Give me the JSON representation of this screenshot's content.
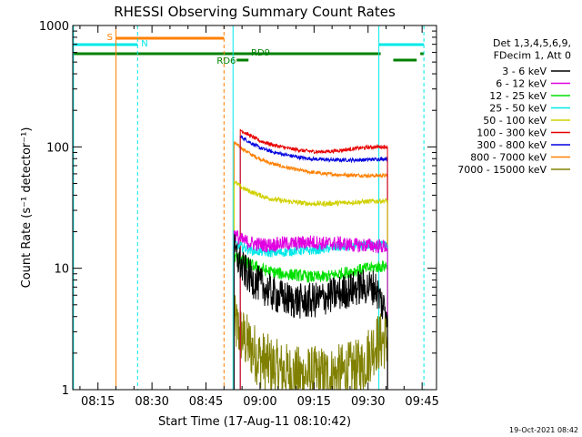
{
  "chart_data": {
    "type": "line",
    "title": "RHESSI Observing Summary Count Rates",
    "xlabel": "Start Time (17-Aug-11 08:10:42)",
    "ylabel": "Count Rate (s⁻¹ detector⁻¹)",
    "yscale": "log",
    "ylim": [
      1,
      1000
    ],
    "xlim_minutes": [
      8.0,
      49.0
    ],
    "x_ticks": [
      {
        "label": "08:15",
        "min": 15
      },
      {
        "label": "08:30",
        "min": 30
      },
      {
        "label": "08:45",
        "min": 45
      },
      {
        "label": "09:00",
        "min": 60
      },
      {
        "label": "09:15",
        "min": 75
      },
      {
        "label": "09:30",
        "min": 90
      },
      {
        "label": "09:45",
        "min": 105
      }
    ],
    "y_ticks": [
      {
        "label": "1",
        "value": 1
      },
      {
        "label": "10",
        "value": 10
      },
      {
        "label": "100",
        "value": 100
      },
      {
        "label": "1000",
        "value": 1000
      }
    ],
    "legend_header": [
      "Det 1,3,4,5,6,9,",
      "FDecim 1, Att 0"
    ],
    "legend_placement": "right",
    "series": [
      {
        "name": "3 - 6 keV",
        "color": "#000000",
        "start": 52.8,
        "end": 95.4,
        "profile": [
          [
            52.8,
            14
          ],
          [
            55,
            10
          ],
          [
            58,
            8
          ],
          [
            61,
            7
          ],
          [
            64,
            6
          ],
          [
            68,
            5.5
          ],
          [
            72,
            5.3
          ],
          [
            76,
            5.5
          ],
          [
            80,
            6
          ],
          [
            84,
            6.5
          ],
          [
            88,
            7
          ],
          [
            92,
            7
          ],
          [
            94,
            5
          ],
          [
            95.4,
            4.5
          ]
        ],
        "noise": 0.15
      },
      {
        "name": "6 - 12 keV",
        "color": "#e000e0",
        "start": 52.8,
        "end": 95.4,
        "profile": [
          [
            52.8,
            19
          ],
          [
            55,
            17
          ],
          [
            58,
            16
          ],
          [
            62,
            15.5
          ],
          [
            66,
            16
          ],
          [
            70,
            16
          ],
          [
            74,
            16.5
          ],
          [
            78,
            16
          ],
          [
            82,
            16
          ],
          [
            86,
            15.5
          ],
          [
            90,
            15.5
          ],
          [
            95.4,
            15
          ]
        ],
        "noise": 0.06
      },
      {
        "name": "12 - 25 keV",
        "color": "#00e000",
        "start": 52.8,
        "end": 95.4,
        "profile": [
          [
            52.8,
            12.5
          ],
          [
            55,
            11.5
          ],
          [
            58,
            10.5
          ],
          [
            62,
            9.5
          ],
          [
            66,
            9
          ],
          [
            70,
            8.8
          ],
          [
            74,
            8.5
          ],
          [
            78,
            8.5
          ],
          [
            82,
            9
          ],
          [
            86,
            9.5
          ],
          [
            90,
            10
          ],
          [
            95.4,
            10.5
          ]
        ],
        "noise": 0.05
      },
      {
        "name": "25 - 50 keV",
        "color": "#00e8e8",
        "start": 52.8,
        "end": 95.4,
        "profile": [
          [
            52.8,
            16
          ],
          [
            55,
            15
          ],
          [
            58,
            14
          ],
          [
            62,
            13.5
          ],
          [
            66,
            13.5
          ],
          [
            70,
            14
          ],
          [
            74,
            14
          ],
          [
            78,
            14.5
          ],
          [
            82,
            15
          ],
          [
            86,
            15
          ],
          [
            90,
            15.5
          ],
          [
            95.4,
            15.5
          ]
        ],
        "noise": 0.04
      },
      {
        "name": "50 - 100 keV",
        "color": "#d0d000",
        "start": 52.8,
        "end": 95.4,
        "profile": [
          [
            52.8,
            52
          ],
          [
            55,
            46
          ],
          [
            58,
            42
          ],
          [
            62,
            38
          ],
          [
            66,
            36
          ],
          [
            70,
            35
          ],
          [
            74,
            34
          ],
          [
            78,
            34
          ],
          [
            82,
            34.5
          ],
          [
            86,
            35
          ],
          [
            90,
            35.5
          ],
          [
            95.4,
            36
          ]
        ],
        "noise": 0.02
      },
      {
        "name": "100 - 300 keV",
        "color": "#e80000",
        "start": 54.5,
        "end": 95.4,
        "profile": [
          [
            54.5,
            138
          ],
          [
            57,
            125
          ],
          [
            60,
            112
          ],
          [
            64,
            103
          ],
          [
            68,
            97
          ],
          [
            72,
            93
          ],
          [
            76,
            91
          ],
          [
            80,
            92
          ],
          [
            84,
            95
          ],
          [
            88,
            98
          ],
          [
            92,
            100
          ],
          [
            95.4,
            100
          ]
        ],
        "noise": 0.015
      },
      {
        "name": "300 - 800 keV",
        "color": "#0000e0",
        "start": 54.5,
        "end": 95.4,
        "profile": [
          [
            54.5,
            122
          ],
          [
            57,
            110
          ],
          [
            60,
            98
          ],
          [
            64,
            90
          ],
          [
            68,
            85
          ],
          [
            72,
            81
          ],
          [
            76,
            79
          ],
          [
            80,
            78
          ],
          [
            84,
            78
          ],
          [
            88,
            78
          ],
          [
            92,
            79
          ],
          [
            95.4,
            80
          ]
        ],
        "noise": 0.015
      },
      {
        "name": "800 - 7000 keV",
        "color": "#ff8000",
        "start": 52.8,
        "end": 95.4,
        "profile": [
          [
            52.8,
            108
          ],
          [
            55,
            97
          ],
          [
            58,
            85
          ],
          [
            62,
            75
          ],
          [
            66,
            69
          ],
          [
            70,
            65
          ],
          [
            74,
            62
          ],
          [
            78,
            60
          ],
          [
            82,
            59
          ],
          [
            86,
            58.5
          ],
          [
            90,
            58
          ],
          [
            95.4,
            58
          ]
        ],
        "noise": 0.015
      },
      {
        "name": "7000 - 15000 keV",
        "color": "#808000",
        "start": 52.8,
        "end": 95.4,
        "profile": [
          [
            52.8,
            3.5
          ],
          [
            56,
            2.5
          ],
          [
            60,
            1.8
          ],
          [
            64,
            1.5
          ],
          [
            70,
            1.3
          ],
          [
            80,
            1.3
          ],
          [
            88,
            1.5
          ],
          [
            92,
            2.4
          ],
          [
            95.4,
            2.6
          ]
        ],
        "noise": 0.25
      }
    ],
    "annotations": [
      {
        "label": "S",
        "color": "#ff8000"
      },
      {
        "label": "N",
        "color": "#00e8e8"
      },
      {
        "label": "RD6",
        "color": "#008000"
      },
      {
        "label": "RD9",
        "color": "#008000"
      }
    ],
    "footer_date": "19-Oct-2021 08:42"
  }
}
